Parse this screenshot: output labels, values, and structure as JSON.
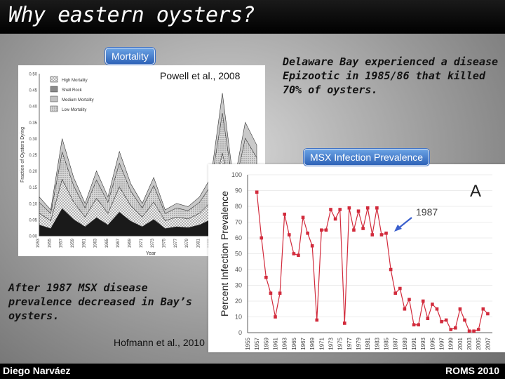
{
  "slide": {
    "title": "Why eastern oysters?",
    "mortality_badge": "Mortality",
    "msx_badge": "MSX Infection Prevalence",
    "powell_credit": "Powell et al., 2008",
    "hofmann_credit": "Hofmann et al., 2010",
    "epizootic_text": "Delaware Bay experienced a disease Epizootic in 1985/86 that killed 70% of oysters.",
    "after_text": "After 1987 MSX disease prevalence decreased in Bay’s oysters.",
    "footer_left": "Diego Narváez",
    "footer_right": "ROMS 2010",
    "background_color": "#a8a8a8",
    "accent_color": "#3b6fc3"
  },
  "chart_data": [
    {
      "type": "area",
      "title": "",
      "ylabel": "Fraction of Oysters Dying",
      "xlabel": "Year",
      "ylim": [
        0,
        0.5
      ],
      "yticks": [
        "0.50",
        "0.45",
        "0.40",
        "0.35",
        "0.30",
        "0.25",
        "0.20",
        "0.15",
        "0.10",
        "0.05",
        "0.00"
      ],
      "xticks": [
        "1953",
        "1955",
        "1957",
        "1959",
        "1961",
        "1963",
        "1965",
        "1967",
        "1969",
        "1971",
        "1973",
        "1975",
        "1977",
        "1979",
        "1981",
        "1983",
        "1985",
        "1987",
        "1989",
        "1991"
      ],
      "legend": [
        "High Mortality",
        "Shell Rock",
        "Medium Mortality",
        "Low Mortality"
      ],
      "legend_position": "top-left",
      "x": [
        1953,
        1955,
        1957,
        1959,
        1961,
        1963,
        1965,
        1967,
        1969,
        1971,
        1973,
        1975,
        1977,
        1979,
        1981,
        1983,
        1985,
        1986,
        1987,
        1989,
        1991
      ],
      "total": [
        0.12,
        0.08,
        0.3,
        0.18,
        0.1,
        0.2,
        0.12,
        0.26,
        0.16,
        0.1,
        0.18,
        0.08,
        0.1,
        0.09,
        0.12,
        0.18,
        0.44,
        0.3,
        0.16,
        0.35,
        0.28
      ],
      "series": [
        {
          "name": "High Mortality",
          "color": "#1a1a1a"
        },
        {
          "name": "Shell Rock",
          "color": "#8a8a8a"
        },
        {
          "name": "Medium Mortality",
          "color": "#c2c2c2"
        },
        {
          "name": "Low Mortality",
          "color": "#e8e8e8"
        }
      ]
    },
    {
      "type": "line",
      "title": "",
      "panel_label": "A",
      "ylabel": "Percent Infection Prevalence",
      "ylim": [
        0,
        100
      ],
      "yticks": [
        "100",
        "90",
        "80",
        "70",
        "60",
        "50",
        "40",
        "30",
        "20",
        "10",
        "0"
      ],
      "xticks": [
        "1955",
        "1957",
        "1959",
        "1961",
        "1963",
        "1965",
        "1967",
        "1969",
        "1971",
        "1973",
        "1975",
        "1977",
        "1979",
        "1981",
        "1983",
        "1985",
        "1987",
        "1989",
        "1991",
        "1993",
        "1995",
        "1997",
        "1999",
        "2001",
        "2003",
        "2005",
        "2007"
      ],
      "annotation": "1987",
      "line_color": "#d22b3c",
      "x": [
        1957,
        1958,
        1959,
        1960,
        1961,
        1962,
        1963,
        1964,
        1965,
        1966,
        1967,
        1968,
        1969,
        1970,
        1971,
        1972,
        1973,
        1974,
        1975,
        1976,
        1977,
        1978,
        1979,
        1980,
        1981,
        1982,
        1983,
        1984,
        1985,
        1986,
        1987,
        1988,
        1989,
        1990,
        1991,
        1992,
        1993,
        1994,
        1995,
        1996,
        1997,
        1998,
        1999,
        2000,
        2001,
        2002,
        2003,
        2004,
        2005,
        2006,
        2007
      ],
      "y": [
        89,
        60,
        35,
        25,
        10,
        25,
        75,
        62,
        50,
        49,
        73,
        63,
        55,
        8,
        65,
        65,
        78,
        72,
        78,
        6,
        79,
        65,
        77,
        66,
        79,
        62,
        79,
        62,
        63,
        40,
        25,
        28,
        15,
        21,
        5,
        5,
        20,
        9,
        18,
        15,
        7,
        8,
        2,
        3,
        15,
        8,
        1,
        1,
        2,
        15,
        12
      ]
    }
  ]
}
